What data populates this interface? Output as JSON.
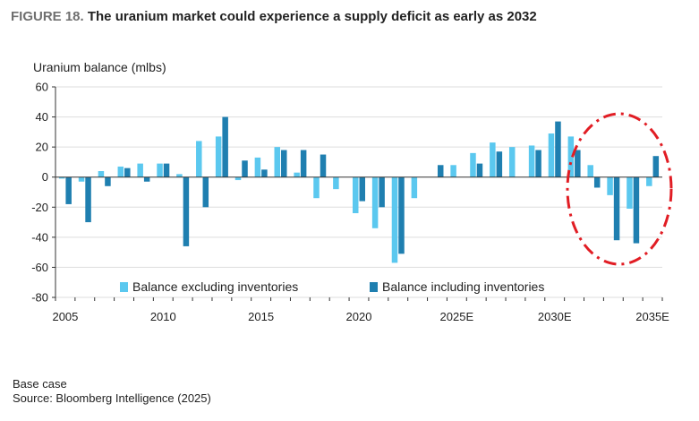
{
  "title": {
    "figure_label": "FIGURE 18.",
    "text": "The uranium market could experience a supply deficit as early as 2032"
  },
  "chart_data": {
    "type": "bar",
    "title": "The uranium market could experience a supply deficit as early as 2032",
    "ylabel": "Uranium balance (mlbs)",
    "xlabel": "",
    "ylim": [
      -80,
      60
    ],
    "yticks": [
      60,
      40,
      20,
      0,
      -20,
      -40,
      -60,
      -80
    ],
    "categories": [
      "2005",
      "2006",
      "2007",
      "2008",
      "2009",
      "2010",
      "2011",
      "2012",
      "2013",
      "2014",
      "2015",
      "2016",
      "2017",
      "2018",
      "2019",
      "2020",
      "2021",
      "2022",
      "2023",
      "2024",
      "2025",
      "2026",
      "2027",
      "2028",
      "2029",
      "2030",
      "2031",
      "2032",
      "2033",
      "2034",
      "2035"
    ],
    "xtick_labels": [
      {
        "index": 0,
        "label": "2005"
      },
      {
        "index": 5,
        "label": "2010"
      },
      {
        "index": 10,
        "label": "2015"
      },
      {
        "index": 15,
        "label": "2020"
      },
      {
        "index": 20,
        "label": "2025E"
      },
      {
        "index": 25,
        "label": "2030E"
      },
      {
        "index": 30,
        "label": "2035E"
      }
    ],
    "series": [
      {
        "name": "Balance excluding inventories",
        "color": "#5bc8ef",
        "values": [
          -1,
          -3,
          4,
          7,
          9,
          9,
          2,
          24,
          27,
          -2,
          13,
          20,
          3,
          -14,
          -8,
          -24,
          -34,
          -57,
          -14,
          0,
          8,
          16,
          23,
          20,
          21,
          29,
          27,
          8,
          -12,
          -21,
          -6
        ]
      },
      {
        "name": "Balance including inventories",
        "color": "#1f7fb0",
        "values": [
          -18,
          -30,
          -6,
          6,
          -3,
          9,
          -46,
          -20,
          40,
          11,
          5,
          18,
          18,
          15,
          0,
          -16,
          -20,
          -51,
          0,
          8,
          0,
          9,
          17,
          0,
          18,
          37,
          18,
          -7,
          -42,
          -44,
          14
        ]
      }
    ],
    "legend_position": "bottom",
    "annotation": {
      "shape": "dashed-ellipse",
      "color": "#e11d24",
      "highlights": [
        "2032",
        "2033",
        "2034",
        "2035"
      ]
    }
  },
  "footer": {
    "note": "Base case",
    "source": "Source: Bloomberg Intelligence (2025)"
  }
}
